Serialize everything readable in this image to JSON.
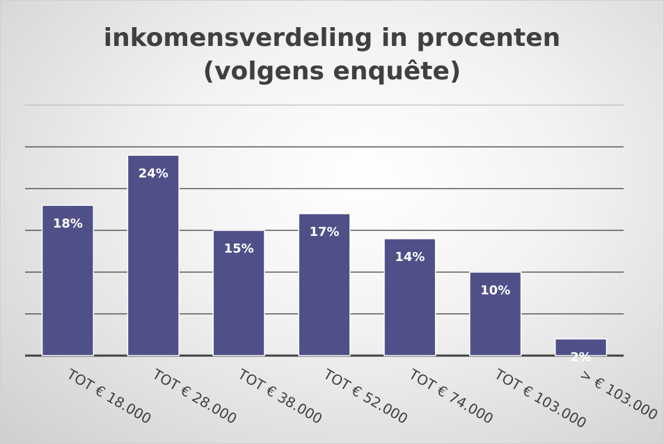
{
  "chart_data": {
    "type": "bar",
    "title": "inkomensverdeling in procenten\n(volgens enquête)",
    "categories": [
      "TOT € 18.000",
      "TOT € 28.000",
      "TOT € 38.000",
      "TOT € 52.000",
      "TOT € 74.000",
      "TOT € 103.000",
      "> € 103.000"
    ],
    "values": [
      18,
      24,
      15,
      17,
      14,
      10,
      2
    ],
    "value_labels": [
      "18%",
      "24%",
      "15%",
      "17%",
      "14%",
      "10%",
      "2%"
    ],
    "color": "#505089",
    "ylim": [
      0,
      30
    ],
    "yticks": [
      0,
      5,
      10,
      15,
      20,
      25,
      30
    ],
    "grid": true
  }
}
